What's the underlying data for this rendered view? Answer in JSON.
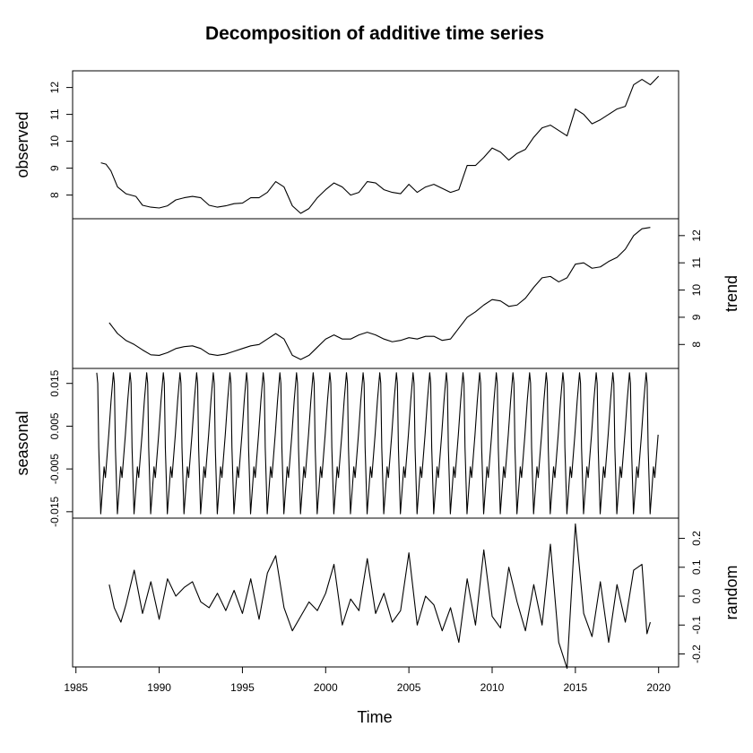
{
  "chart_data": {
    "type": "line",
    "title": "Decomposition of additive time series",
    "xlabel": "Time",
    "xlim": [
      1984.8,
      2021.2
    ],
    "x_ticks": [
      1985,
      1990,
      1995,
      2000,
      2005,
      2010,
      2015,
      2020
    ],
    "x_tick_labels": [
      "1985",
      "1990",
      "1995",
      "2000",
      "2005",
      "2010",
      "2015",
      "2020"
    ],
    "panels": [
      {
        "name": "observed",
        "ylabel": "observed",
        "axis_side": "left",
        "ylim": [
          7.12,
          12.62
        ],
        "y_ticks": [
          8,
          9,
          10,
          11,
          12
        ],
        "y_tick_labels": [
          "8",
          "9",
          "10",
          "11",
          "12"
        ],
        "series": [
          {
            "x": 1986.5,
            "y": 9.2
          },
          {
            "x": 1986.8,
            "y": 9.15
          },
          {
            "x": 1987.1,
            "y": 8.9
          },
          {
            "x": 1987.5,
            "y": 8.3
          },
          {
            "x": 1988.0,
            "y": 8.05
          },
          {
            "x": 1988.6,
            "y": 7.95
          },
          {
            "x": 1989.0,
            "y": 7.62
          },
          {
            "x": 1989.5,
            "y": 7.55
          },
          {
            "x": 1990.0,
            "y": 7.52
          },
          {
            "x": 1990.5,
            "y": 7.6
          },
          {
            "x": 1991.0,
            "y": 7.82
          },
          {
            "x": 1991.5,
            "y": 7.9
          },
          {
            "x": 1992.0,
            "y": 7.95
          },
          {
            "x": 1992.5,
            "y": 7.9
          },
          {
            "x": 1993.0,
            "y": 7.62
          },
          {
            "x": 1993.5,
            "y": 7.55
          },
          {
            "x": 1994.0,
            "y": 7.6
          },
          {
            "x": 1994.5,
            "y": 7.68
          },
          {
            "x": 1995.0,
            "y": 7.7
          },
          {
            "x": 1995.5,
            "y": 7.9
          },
          {
            "x": 1996.0,
            "y": 7.9
          },
          {
            "x": 1996.5,
            "y": 8.1
          },
          {
            "x": 1997.0,
            "y": 8.5
          },
          {
            "x": 1997.5,
            "y": 8.3
          },
          {
            "x": 1998.0,
            "y": 7.6
          },
          {
            "x": 1998.5,
            "y": 7.32
          },
          {
            "x": 1999.0,
            "y": 7.5
          },
          {
            "x": 1999.5,
            "y": 7.9
          },
          {
            "x": 2000.0,
            "y": 8.2
          },
          {
            "x": 2000.5,
            "y": 8.45
          },
          {
            "x": 2001.0,
            "y": 8.3
          },
          {
            "x": 2001.5,
            "y": 8.0
          },
          {
            "x": 2002.0,
            "y": 8.1
          },
          {
            "x": 2002.5,
            "y": 8.5
          },
          {
            "x": 2003.0,
            "y": 8.45
          },
          {
            "x": 2003.5,
            "y": 8.2
          },
          {
            "x": 2004.0,
            "y": 8.1
          },
          {
            "x": 2004.5,
            "y": 8.05
          },
          {
            "x": 2005.0,
            "y": 8.4
          },
          {
            "x": 2005.5,
            "y": 8.1
          },
          {
            "x": 2006.0,
            "y": 8.3
          },
          {
            "x": 2006.5,
            "y": 8.4
          },
          {
            "x": 2007.0,
            "y": 8.25
          },
          {
            "x": 2007.5,
            "y": 8.1
          },
          {
            "x": 2008.0,
            "y": 8.2
          },
          {
            "x": 2008.5,
            "y": 9.1
          },
          {
            "x": 2009.0,
            "y": 9.1
          },
          {
            "x": 2009.5,
            "y": 9.4
          },
          {
            "x": 2010.0,
            "y": 9.75
          },
          {
            "x": 2010.5,
            "y": 9.6
          },
          {
            "x": 2011.0,
            "y": 9.3
          },
          {
            "x": 2011.5,
            "y": 9.55
          },
          {
            "x": 2012.0,
            "y": 9.7
          },
          {
            "x": 2012.5,
            "y": 10.15
          },
          {
            "x": 2013.0,
            "y": 10.5
          },
          {
            "x": 2013.5,
            "y": 10.6
          },
          {
            "x": 2014.0,
            "y": 10.4
          },
          {
            "x": 2014.5,
            "y": 10.2
          },
          {
            "x": 2015.0,
            "y": 11.2
          },
          {
            "x": 2015.5,
            "y": 11.0
          },
          {
            "x": 2016.0,
            "y": 10.65
          },
          {
            "x": 2016.5,
            "y": 10.8
          },
          {
            "x": 2017.0,
            "y": 11.0
          },
          {
            "x": 2017.5,
            "y": 11.2
          },
          {
            "x": 2018.0,
            "y": 11.3
          },
          {
            "x": 2018.5,
            "y": 12.1
          },
          {
            "x": 2019.0,
            "y": 12.3
          },
          {
            "x": 2019.5,
            "y": 12.1
          },
          {
            "x": 2020.0,
            "y": 12.42
          }
        ]
      },
      {
        "name": "trend",
        "ylabel": "trend",
        "axis_side": "right",
        "ylim": [
          7.12,
          12.62
        ],
        "y_ticks": [
          8,
          9,
          10,
          11,
          12
        ],
        "y_tick_labels": [
          "8",
          "9",
          "10",
          "11",
          "12"
        ],
        "series": [
          {
            "x": 1987.0,
            "y": 8.8
          },
          {
            "x": 1987.5,
            "y": 8.4
          },
          {
            "x": 1988.0,
            "y": 8.15
          },
          {
            "x": 1988.5,
            "y": 8.0
          },
          {
            "x": 1989.0,
            "y": 7.8
          },
          {
            "x": 1989.5,
            "y": 7.62
          },
          {
            "x": 1990.0,
            "y": 7.6
          },
          {
            "x": 1990.5,
            "y": 7.7
          },
          {
            "x": 1991.0,
            "y": 7.85
          },
          {
            "x": 1991.5,
            "y": 7.92
          },
          {
            "x": 1992.0,
            "y": 7.95
          },
          {
            "x": 1992.5,
            "y": 7.85
          },
          {
            "x": 1993.0,
            "y": 7.65
          },
          {
            "x": 1993.5,
            "y": 7.6
          },
          {
            "x": 1994.0,
            "y": 7.65
          },
          {
            "x": 1994.5,
            "y": 7.75
          },
          {
            "x": 1995.0,
            "y": 7.85
          },
          {
            "x": 1995.5,
            "y": 7.95
          },
          {
            "x": 1996.0,
            "y": 8.0
          },
          {
            "x": 1996.5,
            "y": 8.2
          },
          {
            "x": 1997.0,
            "y": 8.4
          },
          {
            "x": 1997.5,
            "y": 8.2
          },
          {
            "x": 1998.0,
            "y": 7.6
          },
          {
            "x": 1998.5,
            "y": 7.45
          },
          {
            "x": 1999.0,
            "y": 7.6
          },
          {
            "x": 1999.5,
            "y": 7.9
          },
          {
            "x": 2000.0,
            "y": 8.2
          },
          {
            "x": 2000.5,
            "y": 8.35
          },
          {
            "x": 2001.0,
            "y": 8.2
          },
          {
            "x": 2001.5,
            "y": 8.2
          },
          {
            "x": 2002.0,
            "y": 8.35
          },
          {
            "x": 2002.5,
            "y": 8.45
          },
          {
            "x": 2003.0,
            "y": 8.35
          },
          {
            "x": 2003.5,
            "y": 8.2
          },
          {
            "x": 2004.0,
            "y": 8.1
          },
          {
            "x": 2004.5,
            "y": 8.15
          },
          {
            "x": 2005.0,
            "y": 8.25
          },
          {
            "x": 2005.5,
            "y": 8.2
          },
          {
            "x": 2006.0,
            "y": 8.3
          },
          {
            "x": 2006.5,
            "y": 8.3
          },
          {
            "x": 2007.0,
            "y": 8.15
          },
          {
            "x": 2007.5,
            "y": 8.2
          },
          {
            "x": 2008.0,
            "y": 8.6
          },
          {
            "x": 2008.5,
            "y": 9.0
          },
          {
            "x": 2009.0,
            "y": 9.2
          },
          {
            "x": 2009.5,
            "y": 9.45
          },
          {
            "x": 2010.0,
            "y": 9.65
          },
          {
            "x": 2010.5,
            "y": 9.6
          },
          {
            "x": 2011.0,
            "y": 9.4
          },
          {
            "x": 2011.5,
            "y": 9.45
          },
          {
            "x": 2012.0,
            "y": 9.7
          },
          {
            "x": 2012.5,
            "y": 10.1
          },
          {
            "x": 2013.0,
            "y": 10.45
          },
          {
            "x": 2013.5,
            "y": 10.5
          },
          {
            "x": 2014.0,
            "y": 10.3
          },
          {
            "x": 2014.5,
            "y": 10.45
          },
          {
            "x": 2015.0,
            "y": 10.95
          },
          {
            "x": 2015.5,
            "y": 11.0
          },
          {
            "x": 2016.0,
            "y": 10.8
          },
          {
            "x": 2016.5,
            "y": 10.85
          },
          {
            "x": 2017.0,
            "y": 11.05
          },
          {
            "x": 2017.5,
            "y": 11.2
          },
          {
            "x": 2018.0,
            "y": 11.5
          },
          {
            "x": 2018.5,
            "y": 12.0
          },
          {
            "x": 2019.0,
            "y": 12.25
          },
          {
            "x": 2019.5,
            "y": 12.3
          }
        ]
      },
      {
        "name": "seasonal",
        "ylabel": "seasonal",
        "axis_side": "left",
        "ylim": [
          -0.0165,
          0.0185
        ],
        "y_ticks": [
          -0.015,
          -0.005,
          0.005,
          0.015
        ],
        "y_tick_labels": [
          "-0.015",
          "-0.005",
          "0.005",
          "0.015"
        ],
        "seasonal_start": 1986.25,
        "seasonal_end": 2020.0,
        "seasonal_cycle": [
          {
            "phase": 0.0,
            "y": 0.0175
          },
          {
            "phase": 0.06,
            "y": 0.015
          },
          {
            "phase": 0.12,
            "y": 0.0
          },
          {
            "phase": 0.24,
            "y": -0.0155
          },
          {
            "phase": 0.36,
            "y": -0.009
          },
          {
            "phase": 0.44,
            "y": -0.0045
          },
          {
            "phase": 0.52,
            "y": -0.007
          },
          {
            "phase": 0.62,
            "y": -0.002
          },
          {
            "phase": 0.72,
            "y": 0.003
          },
          {
            "phase": 0.86,
            "y": 0.011
          },
          {
            "phase": 1.0,
            "y": 0.0175
          }
        ]
      },
      {
        "name": "random",
        "ylabel": "random",
        "axis_side": "right",
        "ylim": [
          -0.245,
          0.27
        ],
        "y_ticks": [
          -0.2,
          -0.1,
          0.0,
          0.1,
          0.2
        ],
        "y_tick_labels": [
          "-0.2",
          "-0.1",
          "0.0",
          "0.1",
          "0.2"
        ],
        "series": [
          {
            "x": 1987.0,
            "y": 0.04
          },
          {
            "x": 1987.3,
            "y": -0.04
          },
          {
            "x": 1987.7,
            "y": -0.09
          },
          {
            "x": 1988.0,
            "y": -0.03
          },
          {
            "x": 1988.5,
            "y": 0.09
          },
          {
            "x": 1989.0,
            "y": -0.06
          },
          {
            "x": 1989.5,
            "y": 0.05
          },
          {
            "x": 1990.0,
            "y": -0.08
          },
          {
            "x": 1990.5,
            "y": 0.06
          },
          {
            "x": 1991.0,
            "y": 0.0
          },
          {
            "x": 1991.5,
            "y": 0.03
          },
          {
            "x": 1992.0,
            "y": 0.05
          },
          {
            "x": 1992.5,
            "y": -0.02
          },
          {
            "x": 1993.0,
            "y": -0.04
          },
          {
            "x": 1993.5,
            "y": 0.01
          },
          {
            "x": 1994.0,
            "y": -0.05
          },
          {
            "x": 1994.5,
            "y": 0.02
          },
          {
            "x": 1995.0,
            "y": -0.06
          },
          {
            "x": 1995.5,
            "y": 0.06
          },
          {
            "x": 1996.0,
            "y": -0.08
          },
          {
            "x": 1996.5,
            "y": 0.08
          },
          {
            "x": 1997.0,
            "y": 0.14
          },
          {
            "x": 1997.5,
            "y": -0.04
          },
          {
            "x": 1998.0,
            "y": -0.12
          },
          {
            "x": 1998.5,
            "y": -0.07
          },
          {
            "x": 1999.0,
            "y": -0.02
          },
          {
            "x": 1999.5,
            "y": -0.05
          },
          {
            "x": 2000.0,
            "y": 0.01
          },
          {
            "x": 2000.5,
            "y": 0.11
          },
          {
            "x": 2001.0,
            "y": -0.1
          },
          {
            "x": 2001.5,
            "y": -0.01
          },
          {
            "x": 2002.0,
            "y": -0.05
          },
          {
            "x": 2002.5,
            "y": 0.13
          },
          {
            "x": 2003.0,
            "y": -0.06
          },
          {
            "x": 2003.5,
            "y": 0.01
          },
          {
            "x": 2004.0,
            "y": -0.09
          },
          {
            "x": 2004.5,
            "y": -0.05
          },
          {
            "x": 2005.0,
            "y": 0.15
          },
          {
            "x": 2005.5,
            "y": -0.1
          },
          {
            "x": 2006.0,
            "y": 0.0
          },
          {
            "x": 2006.5,
            "y": -0.03
          },
          {
            "x": 2007.0,
            "y": -0.12
          },
          {
            "x": 2007.5,
            "y": -0.04
          },
          {
            "x": 2008.0,
            "y": -0.16
          },
          {
            "x": 2008.5,
            "y": 0.06
          },
          {
            "x": 2009.0,
            "y": -0.1
          },
          {
            "x": 2009.5,
            "y": 0.16
          },
          {
            "x": 2010.0,
            "y": -0.07
          },
          {
            "x": 2010.5,
            "y": -0.11
          },
          {
            "x": 2011.0,
            "y": 0.1
          },
          {
            "x": 2011.5,
            "y": -0.02
          },
          {
            "x": 2012.0,
            "y": -0.12
          },
          {
            "x": 2012.5,
            "y": 0.04
          },
          {
            "x": 2013.0,
            "y": -0.1
          },
          {
            "x": 2013.5,
            "y": 0.18
          },
          {
            "x": 2014.0,
            "y": -0.16
          },
          {
            "x": 2014.5,
            "y": -0.25
          },
          {
            "x": 2015.0,
            "y": 0.25
          },
          {
            "x": 2015.5,
            "y": -0.06
          },
          {
            "x": 2016.0,
            "y": -0.14
          },
          {
            "x": 2016.5,
            "y": 0.05
          },
          {
            "x": 2017.0,
            "y": -0.16
          },
          {
            "x": 2017.5,
            "y": 0.04
          },
          {
            "x": 2018.0,
            "y": -0.09
          },
          {
            "x": 2018.5,
            "y": 0.09
          },
          {
            "x": 2019.0,
            "y": 0.11
          },
          {
            "x": 2019.3,
            "y": -0.13
          },
          {
            "x": 2019.5,
            "y": -0.09
          }
        ]
      }
    ]
  }
}
